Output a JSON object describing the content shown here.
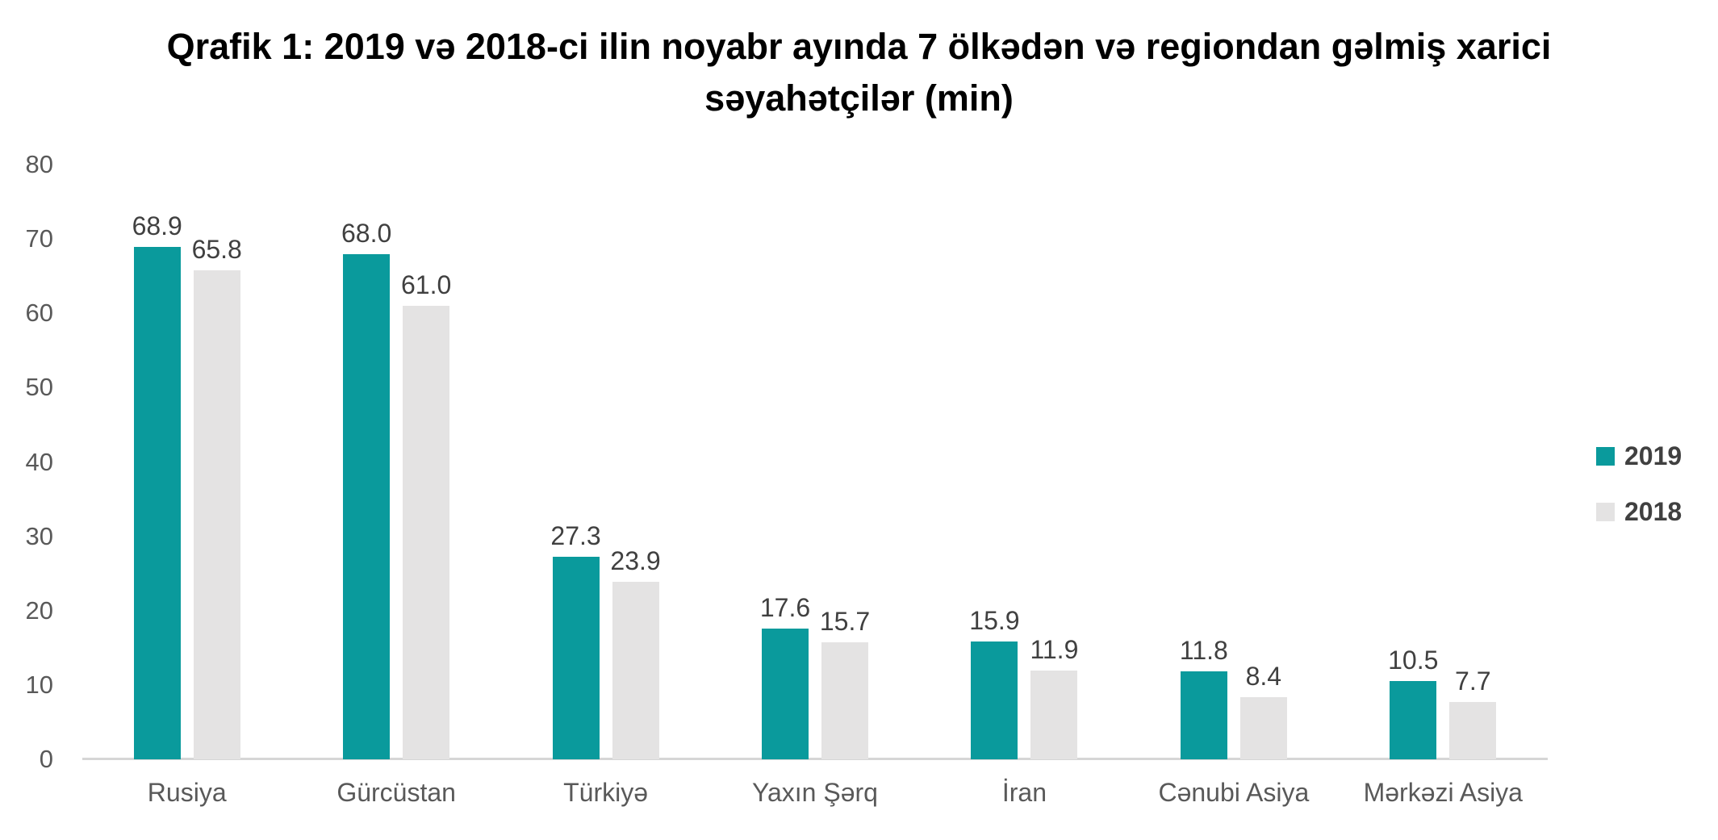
{
  "chart_data": {
    "type": "bar",
    "title": "Qrafik 1: 2019 və 2018-ci ilin noyabr ayında 7 ölkədən və regiondan gəlmiş xarici səyahətçilər (min)",
    "categories": [
      "Rusiya",
      "Gürcüstan",
      "Türkiyə",
      "Yaxın Şərq",
      "İran",
      "Cənubi Asiya",
      "Mərkəzi Asiya"
    ],
    "series": [
      {
        "name": "2019",
        "color": "#0A9A9C",
        "values": [
          68.9,
          68.0,
          27.3,
          17.6,
          15.9,
          11.8,
          10.5
        ]
      },
      {
        "name": "2018",
        "color": "#E4E3E3",
        "values": [
          65.8,
          61.0,
          23.9,
          15.7,
          11.9,
          8.4,
          7.7
        ]
      }
    ],
    "xlabel": "",
    "ylabel": "",
    "ylim": [
      0,
      80
    ],
    "yticks": [
      0,
      10,
      20,
      30,
      40,
      50,
      60,
      70,
      80
    ],
    "grid": false,
    "legend_position": "right",
    "value_labels": true,
    "value_label_format": "one-decimal"
  },
  "colors": {
    "title": "#000000",
    "tick_label": "#595959",
    "value_label": "#404040",
    "axis_line": "#D6D6D6",
    "background": "#FFFFFF"
  }
}
